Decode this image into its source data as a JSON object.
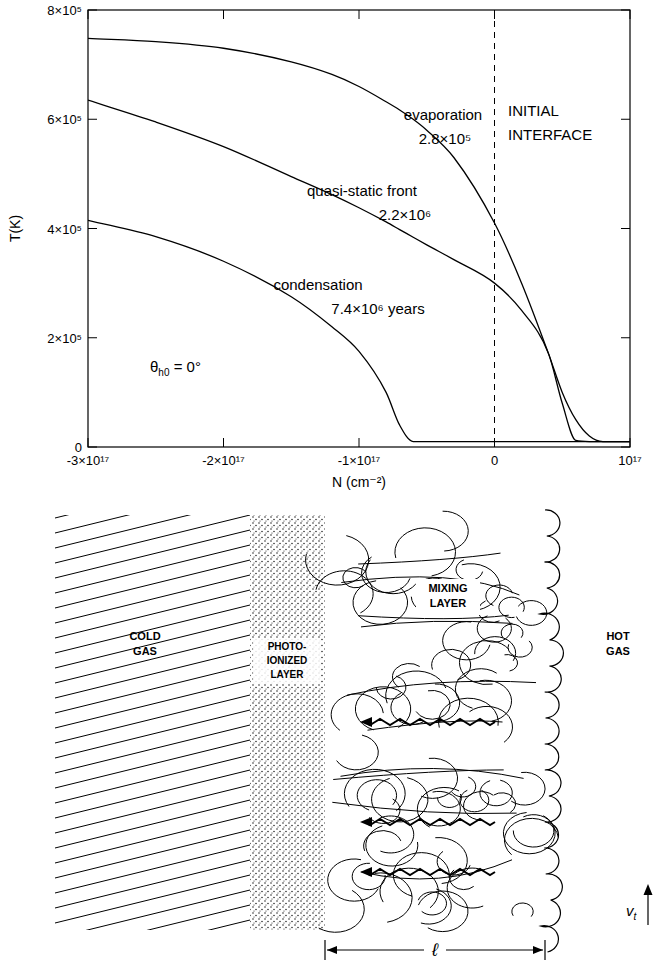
{
  "chart_data": {
    "type": "line",
    "x_label": "N (cm⁻²)",
    "y_label": "T(K)",
    "x": [
      -3e+17,
      -2.5e+17,
      -2e+17,
      -1.5e+17,
      -1.2e+17,
      -1e+17,
      -8e+16,
      -7e+16,
      -6e+16,
      -5e+16,
      -3e+16,
      0,
      2e+16,
      4e+16,
      5e+16,
      6e+16,
      7e+16,
      8e+16,
      1e+17
    ],
    "series": [
      {
        "name": "evaporation",
        "color": "#000000",
        "line_style": "solid",
        "values": [
          748000,
          742000,
          730000,
          705000,
          682000,
          660000,
          632000,
          617000,
          600000,
          580000,
          530000,
          410000,
          300000,
          170000,
          100000,
          50000,
          20000,
          10000,
          10000
        ]
      },
      {
        "name": "quasi-static front",
        "color": "#000000",
        "line_style": "solid",
        "values": [
          635000,
          595000,
          550000,
          495000,
          462000,
          438000,
          412000,
          398000,
          384000,
          370000,
          343000,
          300000,
          250000,
          170000,
          80000,
          12000,
          10000,
          10000,
          10000
        ]
      },
      {
        "name": "condensation",
        "color": "#000000",
        "line_style": "solid",
        "values": [
          415000,
          385000,
          340000,
          275000,
          220000,
          175000,
          100000,
          40000,
          10000,
          10000,
          10000,
          10000,
          10000,
          10000,
          10000,
          10000,
          10000,
          10000,
          10000
        ]
      }
    ],
    "xlim": [
      -3e+17,
      1e+17
    ],
    "ylim": [
      0,
      800000
    ],
    "xticks": [
      {
        "value": -3e+17,
        "label": "-3×10¹⁷"
      },
      {
        "value": -2e+17,
        "label": "-2×10¹⁷"
      },
      {
        "value": -1e+17,
        "label": "-1×10¹⁷"
      },
      0,
      {
        "value": 1e+17,
        "label": "10¹⁷"
      }
    ],
    "yticks": [
      0,
      {
        "value": 200000,
        "label": "2×10⁵"
      },
      {
        "value": 400000,
        "label": "4×10⁵"
      },
      {
        "value": 600000,
        "label": "6×10⁵"
      },
      {
        "value": 800000,
        "label": "8×10⁵"
      }
    ],
    "grid": false,
    "vline": 0,
    "annotations": [
      {
        "text": "2.8×10⁵"
      },
      {
        "text": "2.2×10⁶"
      },
      {
        "text": "7.4×10⁶ years"
      },
      {
        "text": "INITIAL INTERFACE"
      }
    ],
    "theta_label": {
      "symbol": "θ",
      "subscript": "h0",
      "text": " = 0°"
    }
  },
  "diagram": {
    "regions": [
      {
        "label": "COLD GAS"
      },
      {
        "label": "PHOTO-IONIZED LAYER"
      },
      {
        "label": "MIXING LAYER"
      },
      {
        "label": "HOT GAS"
      }
    ],
    "velocity": {
      "symbol": "v",
      "subscript": "t"
    },
    "length": "ℓ"
  }
}
